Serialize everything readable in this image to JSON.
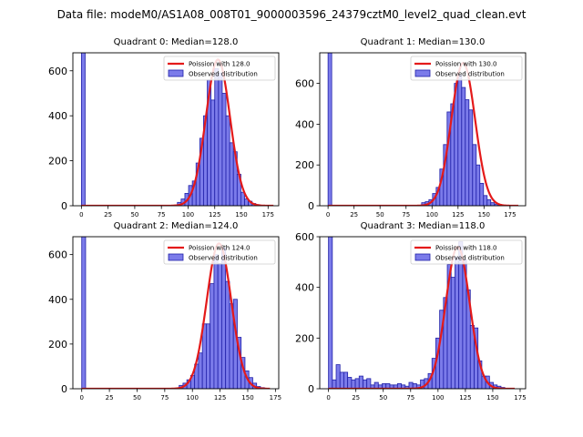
{
  "suptitle": "Data file: modeM0/AS1A08_008T01_9000003596_24379cztM0_level2_quad_clean.evt",
  "colors": {
    "bar_fill": "#7b7bea",
    "bar_edge": "#2020a8",
    "curve": "#e41a1a"
  },
  "chart_data": [
    {
      "type": "bar",
      "title": "Quadrant 0: Median=128.0",
      "xlim": [
        -8,
        185
      ],
      "ylim": [
        0,
        680
      ],
      "xticks": [
        "0",
        "25",
        "50",
        "75",
        "100",
        "125",
        "150",
        "175"
      ],
      "yticks": [
        "0",
        "200",
        "400",
        "600"
      ],
      "legend": {
        "line": "Poission with 128.0",
        "bar": "Observed distribution",
        "loc": "upper right"
      },
      "bin_width": 3.5,
      "bins": [
        [
          0,
          680
        ],
        [
          90,
          15
        ],
        [
          93.5,
          30
        ],
        [
          97,
          55
        ],
        [
          100.5,
          90
        ],
        [
          104,
          110
        ],
        [
          107.5,
          190
        ],
        [
          111,
          300
        ],
        [
          114.5,
          400
        ],
        [
          118,
          560
        ],
        [
          121.5,
          470
        ],
        [
          125,
          610
        ],
        [
          128.5,
          590
        ],
        [
          132,
          500
        ],
        [
          135.5,
          400
        ],
        [
          139,
          280
        ],
        [
          142.5,
          240
        ],
        [
          146,
          140
        ],
        [
          149.5,
          60
        ],
        [
          153,
          30
        ],
        [
          156.5,
          20
        ],
        [
          160,
          10
        ],
        [
          163.5,
          5
        ]
      ],
      "poisson_mean": 128,
      "poisson_peak": 650,
      "poisson_sigma": 11.3,
      "poisson_x": [
        0,
        180
      ]
    },
    {
      "type": "bar",
      "title": "Quadrant 1: Median=130.0",
      "xlim": [
        -8,
        190
      ],
      "ylim": [
        0,
        750
      ],
      "xticks": [
        "0",
        "25",
        "50",
        "75",
        "100",
        "125",
        "150",
        "175"
      ],
      "yticks": [
        "0",
        "200",
        "400",
        "600"
      ],
      "legend": {
        "line": "Poission with 130.0",
        "bar": "Observed distribution",
        "loc": "upper right"
      },
      "bin_width": 3.5,
      "bins": [
        [
          0,
          750
        ],
        [
          90,
          15
        ],
        [
          93.5,
          20
        ],
        [
          97,
          30
        ],
        [
          100.5,
          60
        ],
        [
          104,
          90
        ],
        [
          107.5,
          180
        ],
        [
          111,
          300
        ],
        [
          114.5,
          460
        ],
        [
          118,
          500
        ],
        [
          121.5,
          600
        ],
        [
          125,
          640
        ],
        [
          128.5,
          580
        ],
        [
          132,
          520
        ],
        [
          135.5,
          470
        ],
        [
          139,
          300
        ],
        [
          142.5,
          200
        ],
        [
          146,
          110
        ],
        [
          149.5,
          50
        ],
        [
          153,
          30
        ],
        [
          156.5,
          15
        ],
        [
          160,
          8
        ],
        [
          163.5,
          5
        ]
      ],
      "poisson_mean": 130,
      "poisson_peak": 700,
      "poisson_sigma": 11.4,
      "poisson_x": [
        0,
        183
      ]
    },
    {
      "type": "bar",
      "title": "Quadrant 2: Median=124.0",
      "xlim": [
        -8,
        178
      ],
      "ylim": [
        0,
        680
      ],
      "xticks": [
        "0",
        "25",
        "50",
        "75",
        "100",
        "125",
        "150",
        "175"
      ],
      "yticks": [
        "0",
        "200",
        "400",
        "600"
      ],
      "legend": {
        "line": "Poission with 124.0",
        "bar": "Observed distribution",
        "loc": "upper right"
      },
      "bin_width": 3.5,
      "bins": [
        [
          0,
          680
        ],
        [
          88,
          15
        ],
        [
          91.5,
          25
        ],
        [
          95,
          40
        ],
        [
          98.5,
          60
        ],
        [
          102,
          110
        ],
        [
          105.5,
          160
        ],
        [
          109,
          290
        ],
        [
          112.5,
          290
        ],
        [
          116,
          470
        ],
        [
          119.5,
          600
        ],
        [
          123,
          560
        ],
        [
          126.5,
          630
        ],
        [
          130,
          480
        ],
        [
          133.5,
          380
        ],
        [
          137,
          400
        ],
        [
          140.5,
          230
        ],
        [
          144,
          140
        ],
        [
          147.5,
          80
        ],
        [
          151,
          50
        ],
        [
          154.5,
          25
        ],
        [
          158,
          10
        ],
        [
          161.5,
          5
        ]
      ],
      "poisson_mean": 124,
      "poisson_peak": 650,
      "poisson_sigma": 11.1,
      "poisson_x": [
        0,
        170
      ]
    },
    {
      "type": "bar",
      "title": "Quadrant 3: Median=118.0",
      "xlim": [
        -8,
        180
      ],
      "ylim": [
        0,
        600
      ],
      "xticks": [
        "0",
        "25",
        "50",
        "75",
        "100",
        "125",
        "150",
        "175"
      ],
      "yticks": [
        "0",
        "200",
        "400",
        "600"
      ],
      "legend": {
        "line": "Poission with 118.0",
        "bar": "Observed distribution",
        "loc": "upper right"
      },
      "bin_width": 3.5,
      "bins": [
        [
          0,
          600
        ],
        [
          3.5,
          35
        ],
        [
          7,
          95
        ],
        [
          10.5,
          65
        ],
        [
          14,
          65
        ],
        [
          17.5,
          45
        ],
        [
          21,
          35
        ],
        [
          24.5,
          40
        ],
        [
          28,
          50
        ],
        [
          31.5,
          35
        ],
        [
          35,
          40
        ],
        [
          38.5,
          15
        ],
        [
          42,
          25
        ],
        [
          45.5,
          15
        ],
        [
          49,
          20
        ],
        [
          52.5,
          20
        ],
        [
          56,
          15
        ],
        [
          59.5,
          15
        ],
        [
          63,
          20
        ],
        [
          66.5,
          15
        ],
        [
          70,
          10
        ],
        [
          73.5,
          25
        ],
        [
          77,
          20
        ],
        [
          80.5,
          15
        ],
        [
          84,
          35
        ],
        [
          87.5,
          40
        ],
        [
          91,
          60
        ],
        [
          94.5,
          120
        ],
        [
          98,
          200
        ],
        [
          101.5,
          310
        ],
        [
          105,
          360
        ],
        [
          108.5,
          490
        ],
        [
          112,
          440
        ],
        [
          115.5,
          520
        ],
        [
          119,
          580
        ],
        [
          122.5,
          510
        ],
        [
          126,
          390
        ],
        [
          129.5,
          250
        ],
        [
          133,
          240
        ],
        [
          136.5,
          110
        ],
        [
          140,
          50
        ],
        [
          143.5,
          50
        ],
        [
          147,
          25
        ],
        [
          150.5,
          15
        ],
        [
          154,
          10
        ],
        [
          157.5,
          5
        ]
      ],
      "poisson_mean": 118,
      "poisson_peak": 560,
      "poisson_sigma": 10.9,
      "poisson_x": [
        0,
        170
      ]
    }
  ]
}
